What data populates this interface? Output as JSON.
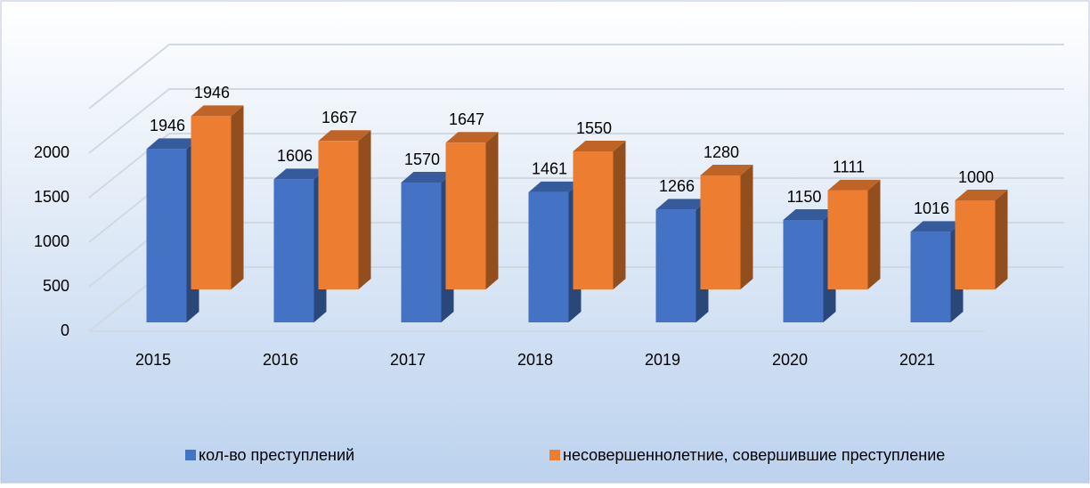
{
  "chart_data": {
    "type": "bar",
    "categories": [
      "2015",
      "2016",
      "2017",
      "2018",
      "2019",
      "2020",
      "2021"
    ],
    "series": [
      {
        "name": "кол-во преступлений",
        "color": "#4472c4",
        "values": [
          1946,
          1606,
          1570,
          1461,
          1266,
          1150,
          1016
        ]
      },
      {
        "name": "несовершеннолетние, совершившие преступление",
        "color": "#ed7d31",
        "values": [
          1946,
          1667,
          1647,
          1550,
          1280,
          1111,
          1000
        ]
      }
    ],
    "ylim": [
      0,
      2500
    ],
    "yticks": [
      0,
      500,
      1000,
      1500,
      2000
    ],
    "grid": true,
    "legend": "bottom"
  }
}
